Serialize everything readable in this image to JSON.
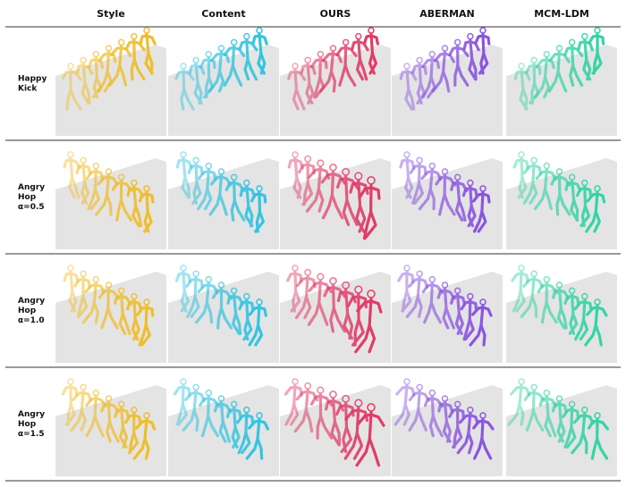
{
  "columns": [
    "Style",
    "Content",
    "OURS",
    "ABERMAN",
    "MCM-LDM"
  ],
  "rows": [
    {
      "label": [
        "Happy",
        "Kick"
      ]
    },
    {
      "label": [
        "Angry",
        "Hop",
        "α=0.5"
      ]
    },
    {
      "label": [
        "Angry",
        "Hop",
        "α=1.0"
      ]
    },
    {
      "label": [
        "Angry",
        "Hop",
        "α=1.5"
      ]
    }
  ]
}
